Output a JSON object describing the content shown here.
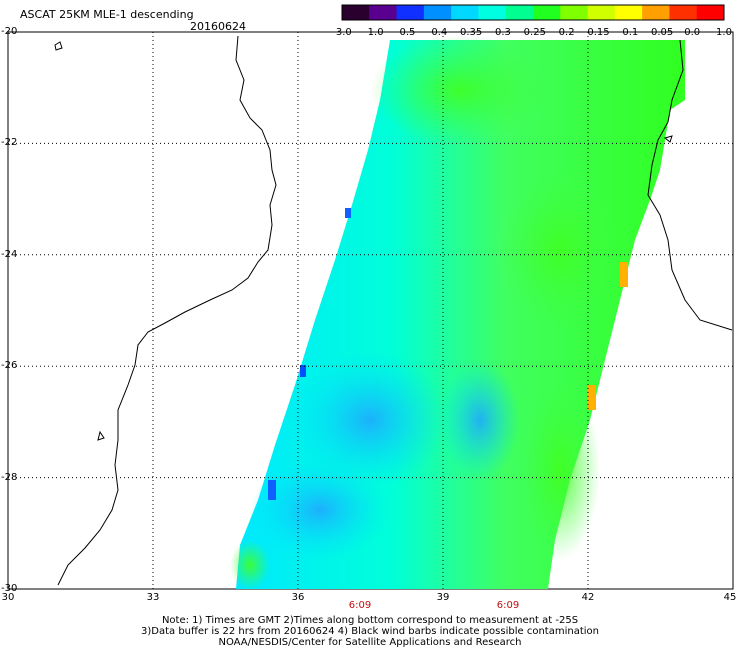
{
  "header": {
    "title": "ASCAT 25KM MLE-1 descending",
    "date": "20160624"
  },
  "colorbar": {
    "labels": [
      "-3.0",
      "-1.0",
      "-0.5",
      "-0.4",
      "-0.35",
      "-0.3",
      "-0.25",
      "-0.2",
      "-0.15",
      "-0.1",
      "-0.05",
      "0.0",
      "1.0"
    ],
    "colors": [
      "#2a002e",
      "#5a0090",
      "#1030ff",
      "#0090ff",
      "#00d8ff",
      "#00ffe0",
      "#00ff90",
      "#20ff20",
      "#80ff00",
      "#d0ff00",
      "#ffff00",
      "#ffa000",
      "#ff3000",
      "#ff0000"
    ]
  },
  "axes": {
    "lat_labels": [
      "-20",
      "-22",
      "-24",
      "-26",
      "-28",
      "-30"
    ],
    "lon_labels": [
      "30",
      "33",
      "36",
      "39",
      "42",
      "45"
    ]
  },
  "times": {
    "left": "6:09",
    "right": "6:09"
  },
  "notes": [
    "Note: 1) Times are GMT 2)Times along bottom correspond to measurement at -25S",
    "3)Data buffer is 22 hrs from 20160624 4) Black wind barbs indicate possible contamination",
    "NOAA/NESDIS/Center for Satellite Applications and Research"
  ]
}
